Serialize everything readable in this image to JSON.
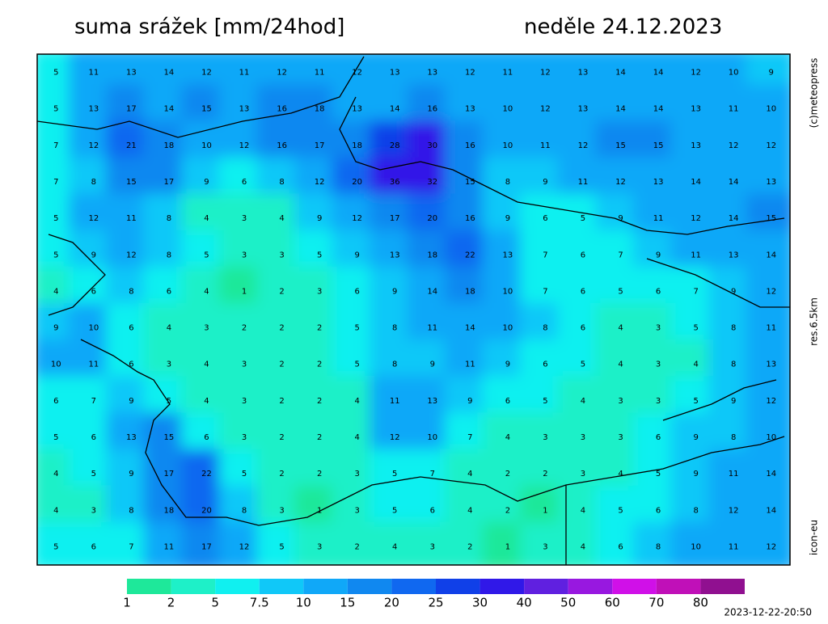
{
  "header": {
    "title": "suma srážek [mm/24hod]",
    "date": "neděle 24.12.2023"
  },
  "side_labels": [
    "(c)meteopress",
    "res.6.5km",
    "icon-eu"
  ],
  "timestamp": "2023-12-22-20:50",
  "legend": [
    {
      "value": 1,
      "color": "#1ee89a"
    },
    {
      "value": 2,
      "color": "#1ef0c8"
    },
    {
      "value": 5,
      "color": "#10f0f0"
    },
    {
      "value": 7.5,
      "color": "#10c8f8"
    },
    {
      "value": 10,
      "color": "#10a8f8"
    },
    {
      "value": 15,
      "color": "#1088f0"
    },
    {
      "value": 20,
      "color": "#1068f0"
    },
    {
      "value": 25,
      "color": "#1040e8"
    },
    {
      "value": 30,
      "color": "#3018e8"
    },
    {
      "value": 40,
      "color": "#6020e0"
    },
    {
      "value": 50,
      "color": "#9818e0"
    },
    {
      "value": 60,
      "color": "#d010e8"
    },
    {
      "value": 70,
      "color": "#c010b8"
    },
    {
      "value": 80,
      "color": "#901090"
    }
  ],
  "grid": [
    [
      5,
      11,
      13,
      14,
      12,
      11,
      12,
      11,
      12,
      13,
      13,
      12,
      11,
      12,
      13,
      14,
      14,
      12,
      10,
      9
    ],
    [
      5,
      13,
      17,
      14,
      15,
      13,
      16,
      18,
      13,
      14,
      16,
      13,
      10,
      12,
      13,
      14,
      14,
      13,
      11,
      10
    ],
    [
      7,
      12,
      21,
      18,
      10,
      12,
      16,
      17,
      18,
      28,
      30,
      16,
      10,
      11,
      12,
      15,
      15,
      13,
      12,
      12
    ],
    [
      7,
      8,
      15,
      17,
      9,
      6,
      8,
      12,
      20,
      36,
      32,
      15,
      8,
      9,
      11,
      12,
      13,
      14,
      14,
      13
    ],
    [
      5,
      12,
      11,
      8,
      4,
      3,
      4,
      9,
      12,
      17,
      20,
      16,
      9,
      6,
      5,
      9,
      11,
      12,
      14,
      15
    ],
    [
      5,
      9,
      12,
      8,
      5,
      3,
      3,
      5,
      9,
      13,
      18,
      22,
      13,
      7,
      6,
      7,
      9,
      11,
      13,
      14
    ],
    [
      4,
      6,
      8,
      6,
      4,
      1,
      2,
      3,
      6,
      9,
      14,
      18,
      10,
      7,
      6,
      5,
      6,
      7,
      9,
      12
    ],
    [
      9,
      10,
      6,
      4,
      3,
      2,
      2,
      2,
      5,
      8,
      11,
      14,
      10,
      8,
      6,
      4,
      3,
      5,
      8,
      11
    ],
    [
      10,
      11,
      6,
      3,
      4,
      3,
      2,
      2,
      5,
      8,
      9,
      11,
      9,
      6,
      5,
      4,
      3,
      4,
      8,
      13
    ],
    [
      6,
      7,
      9,
      5,
      4,
      3,
      2,
      2,
      4,
      11,
      13,
      9,
      6,
      5,
      4,
      3,
      3,
      5,
      9,
      12
    ],
    [
      5,
      6,
      13,
      15,
      6,
      3,
      2,
      2,
      4,
      12,
      10,
      7,
      4,
      3,
      3,
      3,
      6,
      9,
      8,
      10
    ],
    [
      4,
      5,
      9,
      17,
      22,
      5,
      2,
      2,
      3,
      5,
      7,
      4,
      2,
      2,
      3,
      4,
      5,
      9,
      11,
      14
    ],
    [
      4,
      3,
      8,
      18,
      20,
      8,
      3,
      1,
      3,
      5,
      6,
      4,
      2,
      1,
      4,
      5,
      6,
      8,
      12,
      14
    ],
    [
      5,
      6,
      7,
      11,
      17,
      12,
      5,
      3,
      2,
      4,
      3,
      2,
      1,
      3,
      4,
      6,
      8,
      10,
      11,
      12
    ]
  ]
}
